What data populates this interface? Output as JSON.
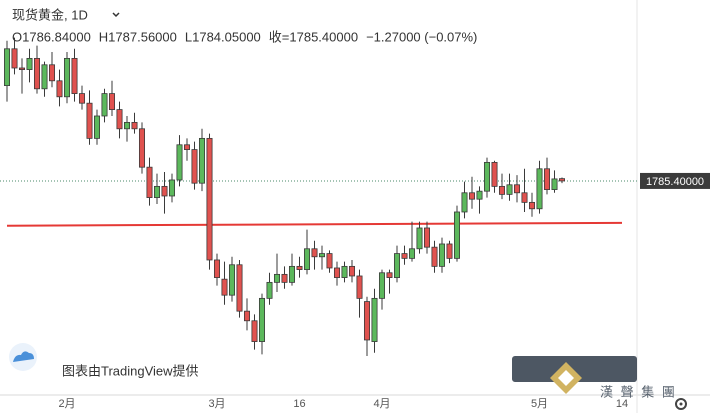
{
  "chart_data": {
    "type": "candlestick",
    "header": {
      "title": "现货黄金, 1D",
      "open": "O1786.84000",
      "high": "H1787.56000",
      "low": "L1784.05000",
      "close": "收=1785.40000",
      "change": "−1.27000 (−0.07%)"
    },
    "watermark": "图表由TradingView提供",
    "logo_caption": "漢 聲 集 團",
    "categories": [
      null,
      null,
      null,
      null,
      null,
      null,
      null,
      null,
      "2月",
      null,
      null,
      null,
      null,
      null,
      null,
      null,
      null,
      null,
      null,
      null,
      null,
      null,
      null,
      null,
      null,
      null,
      null,
      null,
      "3月",
      null,
      null,
      null,
      null,
      null,
      null,
      null,
      null,
      null,
      null,
      "16",
      null,
      null,
      null,
      null,
      null,
      null,
      null,
      null,
      null,
      null,
      "4月",
      null,
      null,
      null,
      null,
      null,
      null,
      null,
      null,
      null,
      null,
      null,
      null,
      null,
      null,
      null,
      null,
      null,
      null,
      null,
      null,
      "5月",
      null,
      null,
      null,
      null,
      null,
      null,
      null,
      null,
      null,
      null,
      "14"
    ],
    "open": [
      1845,
      1868,
      1856,
      1855,
      1862,
      1843,
      1858,
      1848,
      1838,
      1862,
      1840,
      1834,
      1812,
      1826,
      1840,
      1830,
      1818,
      1822,
      1818,
      1794,
      1775,
      1782,
      1776,
      1786,
      1808,
      1805,
      1784,
      1812,
      1736,
      1724,
      1714,
      1733,
      1704,
      1698,
      1685,
      1712,
      1722,
      1727,
      1722,
      1732,
      1730,
      1743,
      1738,
      1740,
      1731,
      1725,
      1732,
      1726,
      1710,
      1685,
      1712,
      1728,
      1725,
      1740,
      1737,
      1743,
      1756,
      1744,
      1732,
      1746,
      1737,
      1766,
      1778,
      1774,
      1779,
      1797,
      1782,
      1777,
      1783,
      1778,
      1772,
      1768,
      1793,
      1780,
      1786.84,
      null,
      null,
      null,
      null,
      null,
      null,
      null,
      null
    ],
    "high": [
      1873,
      1875,
      1862,
      1868,
      1870,
      1860,
      1866,
      1855,
      1866,
      1868,
      1845,
      1842,
      1830,
      1843,
      1848,
      1835,
      1826,
      1828,
      1822,
      1800,
      1790,
      1791,
      1790,
      1814,
      1812,
      1810,
      1818,
      1815,
      1740,
      1735,
      1738,
      1736,
      1712,
      1702,
      1715,
      1728,
      1740,
      1732,
      1740,
      1738,
      1755,
      1748,
      1745,
      1742,
      1735,
      1735,
      1736,
      1730,
      1713,
      1718,
      1730,
      1730,
      1745,
      1745,
      1760,
      1760,
      1760,
      1748,
      1750,
      1748,
      1770,
      1785,
      1788,
      1782,
      1800,
      1798,
      1790,
      1790,
      1789,
      1793,
      1778,
      1798,
      1800,
      1792,
      1787.56,
      null,
      null,
      null,
      null,
      null,
      null,
      null,
      null
    ],
    "low": [
      1835,
      1852,
      1840,
      1847,
      1840,
      1838,
      1844,
      1832,
      1834,
      1835,
      1830,
      1808,
      1808,
      1822,
      1826,
      1812,
      1810,
      1815,
      1790,
      1770,
      1771,
      1765,
      1772,
      1782,
      1798,
      1780,
      1779,
      1730,
      1720,
      1708,
      1710,
      1700,
      1692,
      1680,
      1677,
      1708,
      1716,
      1718,
      1720,
      1725,
      1727,
      1730,
      1730,
      1728,
      1720,
      1722,
      1722,
      1700,
      1676,
      1678,
      1705,
      1715,
      1722,
      1733,
      1735,
      1740,
      1740,
      1728,
      1728,
      1734,
      1735,
      1762,
      1768,
      1765,
      1775,
      1778,
      1774,
      1773,
      1772,
      1766,
      1763,
      1765,
      1777,
      1778,
      1784.05,
      null,
      null,
      null,
      null,
      null,
      null,
      null,
      null
    ],
    "close": [
      1868,
      1856,
      1855,
      1862,
      1843,
      1858,
      1848,
      1838,
      1862,
      1840,
      1834,
      1812,
      1826,
      1840,
      1830,
      1818,
      1822,
      1818,
      1794,
      1775,
      1782,
      1776,
      1786,
      1808,
      1805,
      1784,
      1812,
      1736,
      1725,
      1714,
      1733,
      1704,
      1698,
      1685,
      1712,
      1722,
      1727,
      1722,
      1732,
      1730,
      1743,
      1738,
      1740,
      1731,
      1725,
      1732,
      1726,
      1712,
      1686,
      1712,
      1728,
      1725,
      1740,
      1737,
      1743,
      1756,
      1744,
      1732,
      1746,
      1737,
      1766,
      1778,
      1774,
      1779,
      1797,
      1782,
      1777,
      1783,
      1778,
      1772,
      1768,
      1793,
      1780,
      1786.67,
      1785.4,
      null,
      null,
      null,
      null,
      null,
      null,
      null,
      null
    ],
    "up_color": "#5cb85c",
    "down_color": "#e0524f",
    "ylim": [
      1651.6,
      1898.5
    ],
    "last_price": {
      "value": 1785.4,
      "label": "1785.40000"
    },
    "support_line": [
      1757.4,
      1759.2
    ],
    "support_color": "#e53935"
  }
}
